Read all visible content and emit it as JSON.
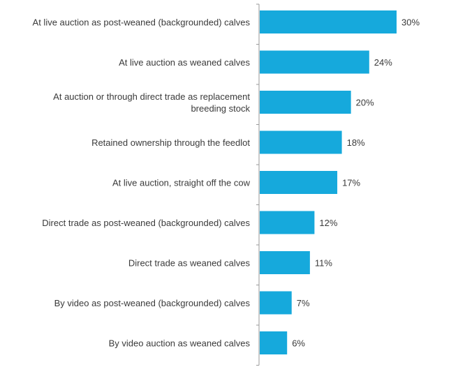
{
  "chart_data": {
    "type": "bar",
    "orientation": "horizontal",
    "categories": [
      [
        "At live auction as post-weaned (backgrounded) calves"
      ],
      [
        "At live auction as weaned calves"
      ],
      [
        "At auction or through direct trade as replacement",
        "breeding stock"
      ],
      [
        "Retained ownership through the feedlot"
      ],
      [
        "At live auction, straight off the cow"
      ],
      [
        "Direct trade as post-weaned (backgrounded) calves"
      ],
      [
        "Direct trade as weaned calves"
      ],
      [
        "By video as post-weaned (backgrounded) calves"
      ],
      [
        "By video auction as weaned calves"
      ]
    ],
    "values": [
      30,
      24,
      20,
      18,
      17,
      12,
      11,
      7,
      6
    ],
    "value_labels": [
      "30%",
      "24%",
      "20%",
      "18%",
      "17%",
      "12%",
      "11%",
      "7%",
      "6%"
    ],
    "bar_color": "#16a9dc",
    "axis_color": "#9a9a9a",
    "xlim": [
      0,
      30
    ],
    "grid": false,
    "legend": "none"
  }
}
